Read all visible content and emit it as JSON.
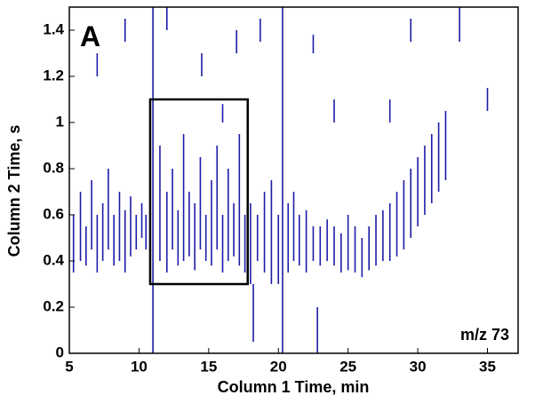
{
  "chart_data": {
    "type": "contour",
    "xlabel": "Column 1 Time, min",
    "ylabel": "Column 2 Time, s",
    "panel_label": "A",
    "annotation": "m/z 73",
    "xlim": [
      5,
      37.2
    ],
    "ylim": [
      0,
      1.5
    ],
    "xticks": [
      5,
      10,
      15,
      20,
      25,
      30,
      35
    ],
    "yticks": [
      0,
      0.2,
      0.4,
      0.6,
      0.8,
      1,
      1.2,
      1.4
    ],
    "color": "#1c1ca8",
    "highlight": {
      "x": [
        10.8,
        17.8
      ],
      "y": [
        0.3,
        1.1
      ]
    },
    "streaks": {
      "x": [
        5.3,
        5.8,
        6.2,
        6.6,
        7.0,
        7.4,
        7.8,
        8.2,
        8.6,
        9.0,
        9.4,
        9.8,
        10.2,
        10.5,
        11.0,
        11.5,
        12.0,
        12.4,
        12.8,
        13.2,
        13.6,
        14.0,
        14.4,
        14.8,
        15.2,
        15.6,
        16.0,
        16.4,
        16.8,
        17.2,
        17.6,
        18.0,
        18.5,
        19.0,
        19.5,
        20.0,
        20.3,
        20.7,
        21.1,
        21.5,
        22.0,
        22.5,
        23.0,
        23.5,
        24.0,
        24.5,
        25.0,
        25.5,
        26.0,
        26.5,
        27.0,
        27.5,
        28.0,
        28.5,
        29.0,
        29.5,
        30.0,
        30.5,
        31.0,
        31.5,
        32.0,
        7.0,
        9.0,
        12.0,
        14.5,
        16.0,
        17.0,
        18.7,
        22.5,
        24.0,
        28.0,
        29.5,
        33.0,
        35.0,
        18.2,
        22.8
      ],
      "y_low": [
        0.35,
        0.4,
        0.38,
        0.45,
        0.35,
        0.4,
        0.45,
        0.38,
        0.4,
        0.35,
        0.42,
        0.45,
        0.5,
        0.45,
        0,
        0.4,
        0.35,
        0.45,
        0.38,
        0.4,
        0.42,
        0.36,
        0.45,
        0.4,
        0.38,
        0.45,
        0.35,
        0.4,
        0.42,
        0.38,
        0.35,
        0.3,
        0.4,
        0.35,
        0.3,
        0.3,
        0,
        0.35,
        0.4,
        0.38,
        0.35,
        0.4,
        0.38,
        0.4,
        0.38,
        0.35,
        0.36,
        0.35,
        0.33,
        0.36,
        0.38,
        0.4,
        0.4,
        0.42,
        0.45,
        0.5,
        0.55,
        0.6,
        0.65,
        0.7,
        0.75,
        1.2,
        1.35,
        1.4,
        1.2,
        1.0,
        1.3,
        1.35,
        1.3,
        1.0,
        1.0,
        1.35,
        1.35,
        1.05,
        0.05,
        0
      ],
      "y_high": [
        0.6,
        0.7,
        0.55,
        0.75,
        0.6,
        0.65,
        0.8,
        0.6,
        0.7,
        0.62,
        0.68,
        0.6,
        0.65,
        0.6,
        1.5,
        0.9,
        0.7,
        0.8,
        0.62,
        0.95,
        0.7,
        0.65,
        0.85,
        0.6,
        0.75,
        0.9,
        0.6,
        0.8,
        0.65,
        0.95,
        0.6,
        0.65,
        0.6,
        0.7,
        0.75,
        0.6,
        1.5,
        0.65,
        0.7,
        0.6,
        0.62,
        0.55,
        0.55,
        0.58,
        0.55,
        0.52,
        0.6,
        0.55,
        0.5,
        0.55,
        0.6,
        0.62,
        0.65,
        0.7,
        0.75,
        0.8,
        0.85,
        0.9,
        0.95,
        1.0,
        1.05,
        1.3,
        1.45,
        1.5,
        1.3,
        1.08,
        1.4,
        1.45,
        1.38,
        1.1,
        1.1,
        1.45,
        1.5,
        1.15,
        0.3,
        0.2
      ]
    }
  }
}
